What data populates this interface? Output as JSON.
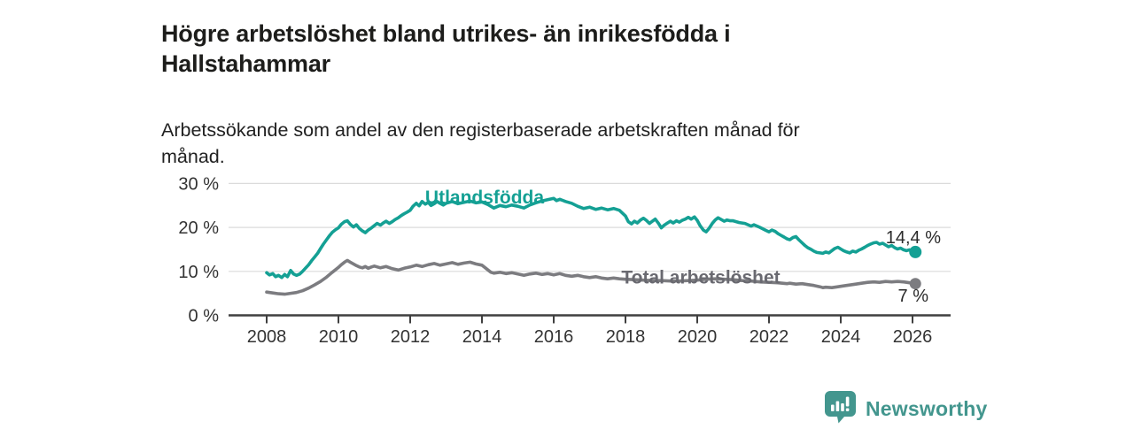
{
  "header": {
    "title": "Högre arbetslöshet bland utrikes- än inrikesfödda i\nHallstahammar",
    "subtitle": "Arbetssökande som andel av den registerbaserade arbetskraften månad för\nmånad."
  },
  "footer": {
    "brand_name": "Newsworthy",
    "logo_icon": "bar-chart-bubble-icon",
    "brand_color": "#43968e"
  },
  "chart_data": {
    "type": "line",
    "title": "Högre arbetslöshet bland utrikes- än inrikesfödda i Hallstahammar",
    "subtitle": "Arbetssökande som andel av den registerbaserade arbetskraften månad för månad.",
    "grid": true,
    "legend_position": "inline-labels",
    "x_axis": {
      "ticks": [
        2008,
        2010,
        2012,
        2014,
        2016,
        2018,
        2020,
        2022,
        2024,
        2026
      ],
      "range": [
        2007.05,
        2027.05
      ]
    },
    "y_axis": {
      "ticks": [
        0,
        10,
        20,
        30
      ],
      "labels": [
        "0 %",
        "10 %",
        "20 %",
        "30 %"
      ],
      "range": [
        0,
        32
      ],
      "unit": "%"
    },
    "series": [
      {
        "name": "Utlandsfödda",
        "color": "#14a094",
        "label_color": "#14a094",
        "end_label": "14,4 %",
        "last_value": 14.4,
        "points": [
          [
            2008.0,
            9.7
          ],
          [
            2008.08,
            9.2
          ],
          [
            2008.17,
            9.5
          ],
          [
            2008.25,
            8.8
          ],
          [
            2008.33,
            9.1
          ],
          [
            2008.42,
            8.6
          ],
          [
            2008.5,
            9.3
          ],
          [
            2008.58,
            8.8
          ],
          [
            2008.67,
            10.2
          ],
          [
            2008.75,
            9.4
          ],
          [
            2008.83,
            9.1
          ],
          [
            2008.92,
            9.4
          ],
          [
            2009.0,
            10.0
          ],
          [
            2009.08,
            10.7
          ],
          [
            2009.17,
            11.5
          ],
          [
            2009.25,
            12.4
          ],
          [
            2009.33,
            13.2
          ],
          [
            2009.42,
            14.1
          ],
          [
            2009.5,
            15.2
          ],
          [
            2009.58,
            16.2
          ],
          [
            2009.67,
            17.2
          ],
          [
            2009.75,
            18.1
          ],
          [
            2009.83,
            18.9
          ],
          [
            2009.92,
            19.5
          ],
          [
            2010.0,
            19.9
          ],
          [
            2010.08,
            20.7
          ],
          [
            2010.17,
            21.3
          ],
          [
            2010.25,
            21.5
          ],
          [
            2010.33,
            20.7
          ],
          [
            2010.42,
            20.1
          ],
          [
            2010.5,
            20.6
          ],
          [
            2010.58,
            19.8
          ],
          [
            2010.67,
            19.2
          ],
          [
            2010.75,
            18.8
          ],
          [
            2010.83,
            19.4
          ],
          [
            2010.92,
            19.9
          ],
          [
            2011.0,
            20.4
          ],
          [
            2011.08,
            20.9
          ],
          [
            2011.17,
            20.5
          ],
          [
            2011.25,
            21.0
          ],
          [
            2011.33,
            21.4
          ],
          [
            2011.42,
            20.9
          ],
          [
            2011.5,
            21.3
          ],
          [
            2011.58,
            21.8
          ],
          [
            2011.67,
            22.2
          ],
          [
            2011.75,
            22.7
          ],
          [
            2011.83,
            23.1
          ],
          [
            2011.92,
            23.5
          ],
          [
            2012.0,
            23.9
          ],
          [
            2012.08,
            24.8
          ],
          [
            2012.17,
            25.5
          ],
          [
            2012.25,
            24.9
          ],
          [
            2012.33,
            25.9
          ],
          [
            2012.42,
            25.3
          ],
          [
            2012.5,
            25.7
          ],
          [
            2012.58,
            25.0
          ],
          [
            2012.67,
            25.4
          ],
          [
            2012.75,
            25.9
          ],
          [
            2012.83,
            25.5
          ],
          [
            2012.92,
            25.1
          ],
          [
            2013.0,
            25.5
          ],
          [
            2013.17,
            25.9
          ],
          [
            2013.33,
            25.4
          ],
          [
            2013.5,
            25.7
          ],
          [
            2013.67,
            26.0
          ],
          [
            2013.83,
            25.6
          ],
          [
            2014.0,
            25.8
          ],
          [
            2014.17,
            25.2
          ],
          [
            2014.33,
            24.4
          ],
          [
            2014.5,
            25.0
          ],
          [
            2014.67,
            24.7
          ],
          [
            2014.83,
            25.1
          ],
          [
            2015.0,
            24.8
          ],
          [
            2015.17,
            24.4
          ],
          [
            2015.33,
            25.1
          ],
          [
            2015.5,
            25.6
          ],
          [
            2015.67,
            26.0
          ],
          [
            2015.83,
            26.3
          ],
          [
            2016.0,
            26.6
          ],
          [
            2016.08,
            26.1
          ],
          [
            2016.17,
            26.4
          ],
          [
            2016.33,
            25.9
          ],
          [
            2016.5,
            25.5
          ],
          [
            2016.67,
            24.8
          ],
          [
            2016.83,
            24.3
          ],
          [
            2017.0,
            24.6
          ],
          [
            2017.17,
            24.1
          ],
          [
            2017.33,
            24.4
          ],
          [
            2017.5,
            24.0
          ],
          [
            2017.67,
            24.3
          ],
          [
            2017.83,
            23.9
          ],
          [
            2018.0,
            22.6
          ],
          [
            2018.08,
            21.3
          ],
          [
            2018.17,
            20.8
          ],
          [
            2018.25,
            21.4
          ],
          [
            2018.33,
            21.0
          ],
          [
            2018.42,
            21.7
          ],
          [
            2018.5,
            22.1
          ],
          [
            2018.58,
            21.6
          ],
          [
            2018.67,
            20.9
          ],
          [
            2018.75,
            21.4
          ],
          [
            2018.83,
            21.9
          ],
          [
            2018.92,
            20.9
          ],
          [
            2019.0,
            19.9
          ],
          [
            2019.08,
            20.5
          ],
          [
            2019.17,
            21.0
          ],
          [
            2019.25,
            21.4
          ],
          [
            2019.33,
            21.0
          ],
          [
            2019.42,
            21.5
          ],
          [
            2019.5,
            21.2
          ],
          [
            2019.58,
            21.6
          ],
          [
            2019.67,
            21.9
          ],
          [
            2019.75,
            22.3
          ],
          [
            2019.83,
            21.9
          ],
          [
            2019.92,
            22.4
          ],
          [
            2020.0,
            21.6
          ],
          [
            2020.08,
            20.4
          ],
          [
            2020.17,
            19.4
          ],
          [
            2020.25,
            19.0
          ],
          [
            2020.33,
            19.8
          ],
          [
            2020.42,
            20.9
          ],
          [
            2020.5,
            21.7
          ],
          [
            2020.58,
            22.2
          ],
          [
            2020.67,
            21.8
          ],
          [
            2020.75,
            21.4
          ],
          [
            2020.83,
            21.7
          ],
          [
            2020.92,
            21.5
          ],
          [
            2021.0,
            21.5
          ],
          [
            2021.17,
            21.1
          ],
          [
            2021.33,
            20.9
          ],
          [
            2021.5,
            20.3
          ],
          [
            2021.58,
            20.6
          ],
          [
            2021.75,
            20.0
          ],
          [
            2021.92,
            19.3
          ],
          [
            2022.0,
            19.0
          ],
          [
            2022.08,
            19.4
          ],
          [
            2022.17,
            19.1
          ],
          [
            2022.25,
            18.6
          ],
          [
            2022.33,
            18.2
          ],
          [
            2022.42,
            17.8
          ],
          [
            2022.5,
            17.4
          ],
          [
            2022.58,
            17.2
          ],
          [
            2022.67,
            17.7
          ],
          [
            2022.75,
            17.9
          ],
          [
            2022.83,
            17.2
          ],
          [
            2022.92,
            16.5
          ],
          [
            2023.0,
            15.9
          ],
          [
            2023.08,
            15.4
          ],
          [
            2023.17,
            15.0
          ],
          [
            2023.25,
            14.6
          ],
          [
            2023.33,
            14.3
          ],
          [
            2023.42,
            14.2
          ],
          [
            2023.5,
            14.1
          ],
          [
            2023.58,
            14.4
          ],
          [
            2023.67,
            14.2
          ],
          [
            2023.75,
            14.7
          ],
          [
            2023.83,
            15.2
          ],
          [
            2023.92,
            15.5
          ],
          [
            2024.0,
            15.1
          ],
          [
            2024.08,
            14.7
          ],
          [
            2024.17,
            14.4
          ],
          [
            2024.25,
            14.2
          ],
          [
            2024.33,
            14.6
          ],
          [
            2024.42,
            14.4
          ],
          [
            2024.5,
            14.8
          ],
          [
            2024.58,
            15.1
          ],
          [
            2024.67,
            15.5
          ],
          [
            2024.75,
            15.9
          ],
          [
            2024.83,
            16.2
          ],
          [
            2024.92,
            16.5
          ],
          [
            2025.0,
            16.6
          ],
          [
            2025.08,
            16.2
          ],
          [
            2025.17,
            16.4
          ],
          [
            2025.25,
            16.0
          ],
          [
            2025.33,
            15.6
          ],
          [
            2025.42,
            15.9
          ],
          [
            2025.5,
            15.4
          ],
          [
            2025.58,
            15.1
          ],
          [
            2025.67,
            15.3
          ],
          [
            2025.75,
            14.9
          ],
          [
            2025.83,
            14.7
          ],
          [
            2025.92,
            14.9
          ],
          [
            2026.0,
            14.6
          ],
          [
            2026.08,
            14.4
          ]
        ]
      },
      {
        "name": "Total arbetslöshet",
        "color": "#7c7c80",
        "label_color": "#696970",
        "end_label": "7 %",
        "last_value": 7,
        "points": [
          [
            2008.0,
            5.3
          ],
          [
            2008.17,
            5.1
          ],
          [
            2008.33,
            4.9
          ],
          [
            2008.5,
            4.8
          ],
          [
            2008.67,
            5.0
          ],
          [
            2008.83,
            5.2
          ],
          [
            2009.0,
            5.6
          ],
          [
            2009.17,
            6.2
          ],
          [
            2009.33,
            6.9
          ],
          [
            2009.5,
            7.7
          ],
          [
            2009.67,
            8.7
          ],
          [
            2009.83,
            9.8
          ],
          [
            2010.0,
            10.9
          ],
          [
            2010.08,
            11.5
          ],
          [
            2010.17,
            12.1
          ],
          [
            2010.25,
            12.5
          ],
          [
            2010.33,
            12.1
          ],
          [
            2010.42,
            11.7
          ],
          [
            2010.5,
            11.3
          ],
          [
            2010.58,
            11.0
          ],
          [
            2010.67,
            10.8
          ],
          [
            2010.75,
            11.1
          ],
          [
            2010.83,
            10.7
          ],
          [
            2010.92,
            11.0
          ],
          [
            2011.0,
            11.2
          ],
          [
            2011.17,
            10.8
          ],
          [
            2011.33,
            11.1
          ],
          [
            2011.5,
            10.6
          ],
          [
            2011.67,
            10.3
          ],
          [
            2011.83,
            10.7
          ],
          [
            2012.0,
            11.0
          ],
          [
            2012.17,
            11.4
          ],
          [
            2012.33,
            11.1
          ],
          [
            2012.5,
            11.5
          ],
          [
            2012.67,
            11.8
          ],
          [
            2012.83,
            11.4
          ],
          [
            2013.0,
            11.7
          ],
          [
            2013.17,
            12.0
          ],
          [
            2013.33,
            11.6
          ],
          [
            2013.5,
            11.9
          ],
          [
            2013.67,
            12.1
          ],
          [
            2013.83,
            11.7
          ],
          [
            2014.0,
            11.4
          ],
          [
            2014.08,
            10.9
          ],
          [
            2014.17,
            10.3
          ],
          [
            2014.25,
            9.8
          ],
          [
            2014.33,
            9.6
          ],
          [
            2014.5,
            9.8
          ],
          [
            2014.67,
            9.5
          ],
          [
            2014.83,
            9.7
          ],
          [
            2015.0,
            9.4
          ],
          [
            2015.17,
            9.1
          ],
          [
            2015.33,
            9.4
          ],
          [
            2015.5,
            9.6
          ],
          [
            2015.67,
            9.3
          ],
          [
            2015.83,
            9.5
          ],
          [
            2016.0,
            9.2
          ],
          [
            2016.17,
            9.5
          ],
          [
            2016.33,
            9.1
          ],
          [
            2016.5,
            8.9
          ],
          [
            2016.67,
            9.1
          ],
          [
            2016.83,
            8.8
          ],
          [
            2017.0,
            8.6
          ],
          [
            2017.17,
            8.8
          ],
          [
            2017.33,
            8.5
          ],
          [
            2017.5,
            8.3
          ],
          [
            2017.67,
            8.5
          ],
          [
            2017.83,
            8.3
          ],
          [
            2018.0,
            8.2
          ],
          [
            2018.25,
            8.1
          ],
          [
            2018.5,
            8.0
          ],
          [
            2018.75,
            7.9
          ],
          [
            2019.0,
            7.9
          ],
          [
            2019.25,
            7.8
          ],
          [
            2019.5,
            7.8
          ],
          [
            2019.75,
            7.9
          ],
          [
            2020.0,
            8.0
          ],
          [
            2020.25,
            8.2
          ],
          [
            2020.5,
            8.3
          ],
          [
            2020.75,
            8.2
          ],
          [
            2021.0,
            8.1
          ],
          [
            2021.25,
            7.9
          ],
          [
            2021.5,
            7.8
          ],
          [
            2021.75,
            7.6
          ],
          [
            2022.0,
            7.5
          ],
          [
            2022.25,
            7.4
          ],
          [
            2022.5,
            7.2
          ],
          [
            2022.58,
            7.3
          ],
          [
            2022.75,
            7.1
          ],
          [
            2022.92,
            7.2
          ],
          [
            2023.08,
            7.0
          ],
          [
            2023.25,
            6.8
          ],
          [
            2023.42,
            6.5
          ],
          [
            2023.5,
            6.3
          ],
          [
            2023.58,
            6.4
          ],
          [
            2023.75,
            6.3
          ],
          [
            2023.92,
            6.5
          ],
          [
            2024.08,
            6.7
          ],
          [
            2024.25,
            6.9
          ],
          [
            2024.42,
            7.1
          ],
          [
            2024.58,
            7.3
          ],
          [
            2024.75,
            7.5
          ],
          [
            2024.92,
            7.6
          ],
          [
            2025.08,
            7.5
          ],
          [
            2025.25,
            7.7
          ],
          [
            2025.42,
            7.6
          ],
          [
            2025.58,
            7.7
          ],
          [
            2025.75,
            7.6
          ],
          [
            2025.92,
            7.4
          ],
          [
            2026.08,
            7.2
          ]
        ]
      }
    ]
  }
}
